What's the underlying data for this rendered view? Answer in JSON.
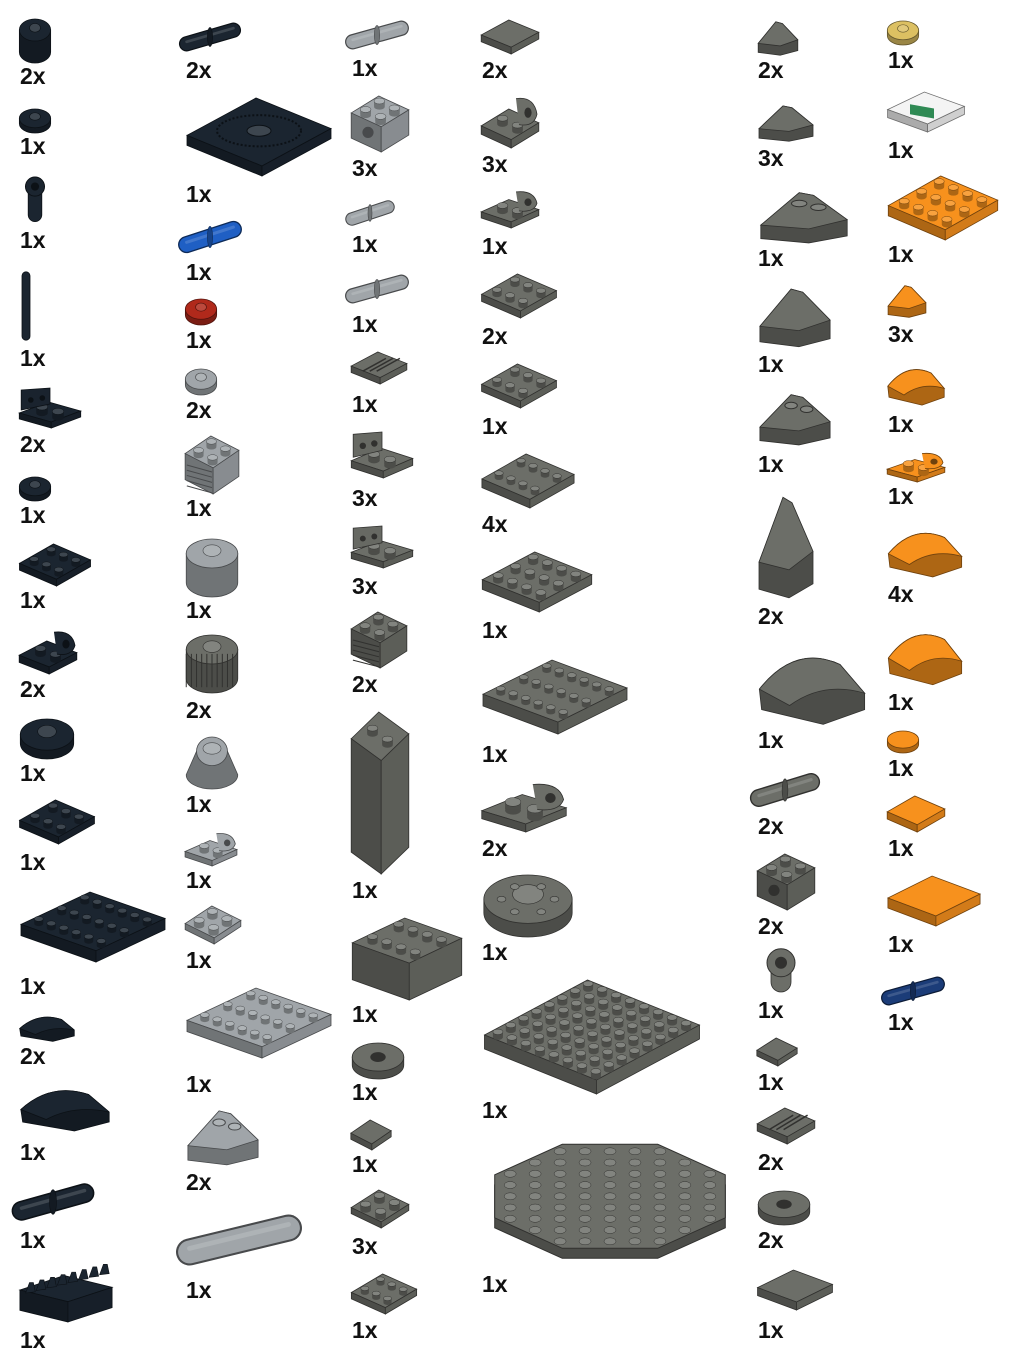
{
  "colors": {
    "black": "#1b2530",
    "dark_bluish_gray": "#6c6e68",
    "light_bluish_gray": "#a0a5a9",
    "orange": "#f7911d",
    "blue": "#1f5fc4",
    "dark_blue": "#1b3c78",
    "red": "#b0291b",
    "yellow": "#dcc062",
    "white": "#f4f4f4",
    "green": "#2f8a54"
  },
  "parts": [
    {
      "id": "p01",
      "qty": "2x",
      "color": "black",
      "shape": "round-brick-icon"
    },
    {
      "id": "p02",
      "qty": "1x",
      "color": "black",
      "shape": "round-plate-icon"
    },
    {
      "id": "p03",
      "qty": "1x",
      "color": "black",
      "shape": "bar-holder-clip-icon"
    },
    {
      "id": "p04",
      "qty": "1x",
      "color": "black",
      "shape": "bar-icon"
    },
    {
      "id": "p05",
      "qty": "2x",
      "color": "black",
      "shape": "bracket-plate-icon"
    },
    {
      "id": "p06",
      "qty": "1x",
      "color": "black",
      "shape": "round-plate-icon"
    },
    {
      "id": "p07",
      "qty": "1x",
      "color": "black",
      "shape": "plate-with-bar-icon"
    },
    {
      "id": "p08",
      "qty": "2x",
      "color": "black",
      "shape": "plate-with-clip-icon"
    },
    {
      "id": "p09",
      "qty": "1x",
      "color": "black",
      "shape": "round-plate-icon"
    },
    {
      "id": "p10",
      "qty": "1x",
      "color": "black",
      "shape": "plate-icon"
    },
    {
      "id": "p11",
      "qty": "1x",
      "color": "black",
      "shape": "plate-icon"
    },
    {
      "id": "p12",
      "qty": "2x",
      "color": "black",
      "shape": "curved-plate-icon"
    },
    {
      "id": "p13",
      "qty": "1x",
      "color": "black",
      "shape": "curved-arch-icon"
    },
    {
      "id": "p14",
      "qty": "1x",
      "color": "black",
      "shape": "axle-pin-icon"
    },
    {
      "id": "p15",
      "qty": "1x",
      "color": "black",
      "shape": "gear-rack-icon"
    },
    {
      "id": "p16",
      "qty": "2x",
      "color": "black",
      "shape": "pin-icon"
    },
    {
      "id": "p17",
      "qty": "1x",
      "color": "black",
      "shape": "turntable-plate-icon"
    },
    {
      "id": "p18",
      "qty": "1x",
      "color": "blue",
      "shape": "pin-icon"
    },
    {
      "id": "p19",
      "qty": "1x",
      "color": "red",
      "shape": "round-plate-icon"
    },
    {
      "id": "p20",
      "qty": "2x",
      "color": "light_bluish_gray",
      "shape": "round-plate-icon"
    },
    {
      "id": "p21",
      "qty": "1x",
      "color": "light_bluish_gray",
      "shape": "grille-brick-icon"
    },
    {
      "id": "p22",
      "qty": "1x",
      "color": "light_bluish_gray",
      "shape": "round-brick-icon"
    },
    {
      "id": "p23",
      "qty": "2x",
      "color": "dark_bluish_gray",
      "shape": "grooved-round-brick-icon"
    },
    {
      "id": "p24",
      "qty": "1x",
      "color": "light_bluish_gray",
      "shape": "cone-icon"
    },
    {
      "id": "p25",
      "qty": "1x",
      "color": "light_bluish_gray",
      "shape": "plate-with-ring-icon"
    },
    {
      "id": "p26",
      "qty": "1x",
      "color": "light_bluish_gray",
      "shape": "plate-icon"
    },
    {
      "id": "p27",
      "qty": "1x",
      "color": "light_bluish_gray",
      "shape": "plate-icon"
    },
    {
      "id": "p28",
      "qty": "2x",
      "color": "light_bluish_gray",
      "shape": "inverted-slope-icon"
    },
    {
      "id": "p29",
      "qty": "1x",
      "color": "light_bluish_gray",
      "shape": "axle-icon"
    },
    {
      "id": "p30",
      "qty": "1x",
      "color": "light_bluish_gray",
      "shape": "pin-icon"
    },
    {
      "id": "p31",
      "qty": "3x",
      "color": "light_bluish_gray",
      "shape": "technic-brick-icon"
    },
    {
      "id": "p32",
      "qty": "1x",
      "color": "light_bluish_gray",
      "shape": "bush-icon"
    },
    {
      "id": "p33",
      "qty": "1x",
      "color": "light_bluish_gray",
      "shape": "pin-icon"
    },
    {
      "id": "p34",
      "qty": "1x",
      "color": "dark_bluish_gray",
      "shape": "grille-tile-icon"
    },
    {
      "id": "p35",
      "qty": "3x",
      "color": "dark_bluish_gray",
      "shape": "bracket-icon"
    },
    {
      "id": "p36",
      "qty": "3x",
      "color": "dark_bluish_gray",
      "shape": "bracket-icon"
    },
    {
      "id": "p37",
      "qty": "2x",
      "color": "dark_bluish_gray",
      "shape": "grille-brick-icon"
    },
    {
      "id": "p38",
      "qty": "1x",
      "color": "dark_bluish_gray",
      "shape": "tall-brick-icon"
    },
    {
      "id": "p39",
      "qty": "1x",
      "color": "dark_bluish_gray",
      "shape": "brick-icon"
    },
    {
      "id": "p40",
      "qty": "1x",
      "color": "dark_bluish_gray",
      "shape": "dish-icon"
    },
    {
      "id": "p41",
      "qty": "1x",
      "color": "dark_bluish_gray",
      "shape": "tile-icon"
    },
    {
      "id": "p42",
      "qty": "3x",
      "color": "dark_bluish_gray",
      "shape": "plate-icon"
    },
    {
      "id": "p43",
      "qty": "1x",
      "color": "dark_bluish_gray",
      "shape": "plate-with-rail-icon"
    },
    {
      "id": "p44",
      "qty": "2x",
      "color": "dark_bluish_gray",
      "shape": "tile-icon"
    },
    {
      "id": "p45",
      "qty": "3x",
      "color": "dark_bluish_gray",
      "shape": "plate-with-ring-icon"
    },
    {
      "id": "p46",
      "qty": "1x",
      "color": "dark_bluish_gray",
      "shape": "plate-with-ring-icon"
    },
    {
      "id": "p47",
      "qty": "2x",
      "color": "dark_bluish_gray",
      "shape": "plate-icon"
    },
    {
      "id": "p48",
      "qty": "1x",
      "color": "dark_bluish_gray",
      "shape": "plate-icon"
    },
    {
      "id": "p49",
      "qty": "4x",
      "color": "dark_bluish_gray",
      "shape": "plate-icon"
    },
    {
      "id": "p50",
      "qty": "1x",
      "color": "dark_bluish_gray",
      "shape": "plate-icon"
    },
    {
      "id": "p51",
      "qty": "1x",
      "color": "dark_bluish_gray",
      "shape": "plate-icon"
    },
    {
      "id": "p52",
      "qty": "2x",
      "color": "dark_bluish_gray",
      "shape": "rounded-plate-icon"
    },
    {
      "id": "p53",
      "qty": "1x",
      "color": "dark_bluish_gray",
      "shape": "round-plate-large-icon"
    },
    {
      "id": "p54",
      "qty": "1x",
      "color": "dark_bluish_gray",
      "shape": "large-plate-icon"
    },
    {
      "id": "p55",
      "qty": "1x",
      "color": "dark_bluish_gray",
      "shape": "octagonal-plate-icon"
    },
    {
      "id": "p56",
      "qty": "2x",
      "color": "dark_bluish_gray",
      "shape": "small-slope-icon"
    },
    {
      "id": "p57",
      "qty": "3x",
      "color": "dark_bluish_gray",
      "shape": "slope-tile-icon"
    },
    {
      "id": "p58",
      "qty": "1x",
      "color": "dark_bluish_gray",
      "shape": "inverted-slope-icon"
    },
    {
      "id": "p59",
      "qty": "1x",
      "color": "dark_bluish_gray",
      "shape": "slope-icon"
    },
    {
      "id": "p60",
      "qty": "1x",
      "color": "dark_bluish_gray",
      "shape": "inverted-slope-icon"
    },
    {
      "id": "p61",
      "qty": "2x",
      "color": "dark_bluish_gray",
      "shape": "tall-slope-icon"
    },
    {
      "id": "p62",
      "qty": "1x",
      "color": "dark_bluish_gray",
      "shape": "curved-slope-icon"
    },
    {
      "id": "p63",
      "qty": "2x",
      "color": "dark_bluish_gray",
      "shape": "pin-connector-icon"
    },
    {
      "id": "p64",
      "qty": "2x",
      "color": "dark_bluish_gray",
      "shape": "technic-brick-icon"
    },
    {
      "id": "p65",
      "qty": "1x",
      "color": "dark_bluish_gray",
      "shape": "bar-holder-clip-icon"
    },
    {
      "id": "p66",
      "qty": "1x",
      "color": "dark_bluish_gray",
      "shape": "tile-icon"
    },
    {
      "id": "p67",
      "qty": "2x",
      "color": "dark_bluish_gray",
      "shape": "grille-tile-icon"
    },
    {
      "id": "p68",
      "qty": "2x",
      "color": "dark_bluish_gray",
      "shape": "round-tile-with-hole-icon"
    },
    {
      "id": "p69",
      "qty": "1x",
      "color": "dark_bluish_gray",
      "shape": "tile-icon"
    },
    {
      "id": "p70",
      "qty": "1x",
      "color": "yellow",
      "shape": "round-plate-icon"
    },
    {
      "id": "p71",
      "qty": "1x",
      "color": "white",
      "shape": "printed-tile-icon"
    },
    {
      "id": "p72",
      "qty": "1x",
      "color": "orange",
      "shape": "plate-icon"
    },
    {
      "id": "p73",
      "qty": "3x",
      "color": "orange",
      "shape": "small-slope-icon"
    },
    {
      "id": "p74",
      "qty": "1x",
      "color": "orange",
      "shape": "curved-slope-icon"
    },
    {
      "id": "p75",
      "qty": "1x",
      "color": "orange",
      "shape": "plate-with-clip-icon"
    },
    {
      "id": "p76",
      "qty": "4x",
      "color": "orange",
      "shape": "curved-slope-icon"
    },
    {
      "id": "p77",
      "qty": "1x",
      "color": "orange",
      "shape": "curved-slope-icon"
    },
    {
      "id": "p78",
      "qty": "1x",
      "color": "orange",
      "shape": "round-tile-icon"
    },
    {
      "id": "p79",
      "qty": "1x",
      "color": "orange",
      "shape": "tile-icon"
    },
    {
      "id": "p80",
      "qty": "1x",
      "color": "orange",
      "shape": "tile-icon"
    },
    {
      "id": "p81",
      "qty": "1x",
      "color": "dark_blue",
      "shape": "pin-icon"
    }
  ]
}
